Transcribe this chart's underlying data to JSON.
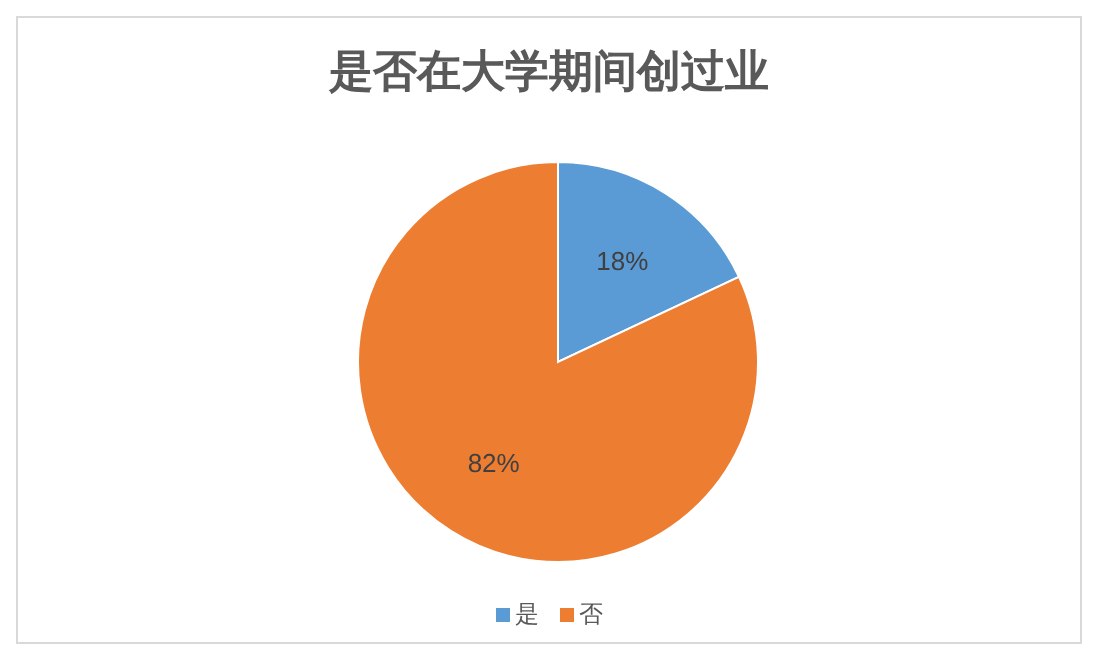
{
  "chart_data": {
    "type": "pie",
    "title": "是否在大学期间创过业",
    "categories": [
      "是",
      "否"
    ],
    "values": [
      18,
      82
    ],
    "colors": [
      "#5b9bd5",
      "#ed7d31"
    ],
    "value_labels": [
      "18%",
      "82%"
    ],
    "legend": "bottom"
  }
}
